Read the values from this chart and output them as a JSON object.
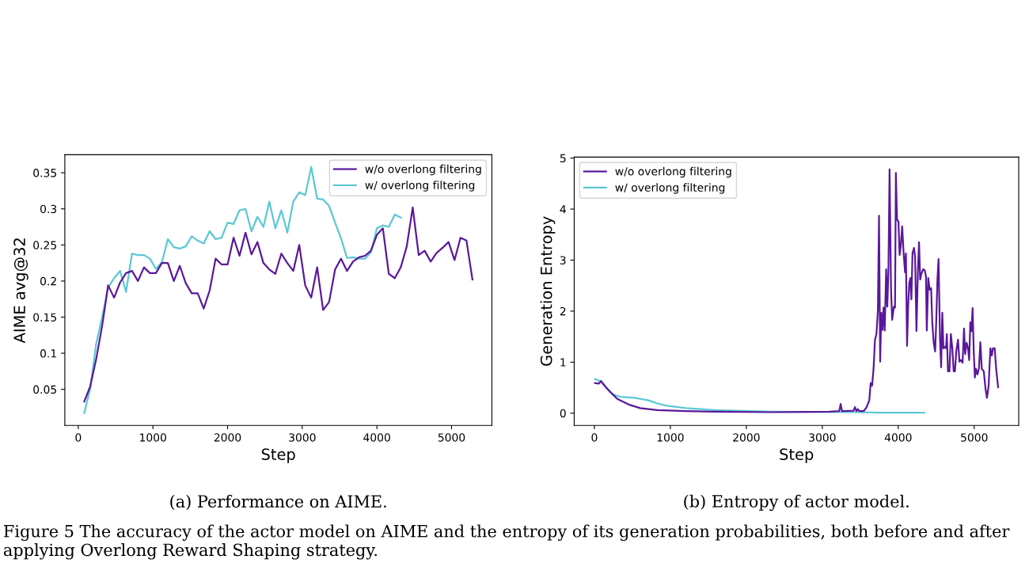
{
  "chart_data": [
    {
      "type": "line",
      "title": "(a) Performance on AIME.",
      "xlabel": "Step",
      "ylabel": "AIME avg@32",
      "xlim": [
        -180,
        5540
      ],
      "ylim": [
        0.0,
        0.375
      ],
      "xticks": [
        0,
        1000,
        2000,
        3000,
        4000,
        5000
      ],
      "yticks": [
        0.05,
        0.1,
        0.15,
        0.2,
        0.25,
        0.3,
        0.35
      ],
      "grid": false,
      "legend": "top right",
      "marker": "none",
      "line_style": "solid",
      "annotations": [
        "Figure 5 The accuracy of the actor model on AIME and the entropy of its generation probabilities, both before and after applying Overlong Reward Shaping strategy."
      ],
      "series": [
        {
          "name": "w/o overlong filtering",
          "color": "#5a189a",
          "x": [
            80,
            160,
            240,
            320,
            400,
            480,
            560,
            640,
            720,
            800,
            880,
            960,
            1040,
            1120,
            1200,
            1280,
            1360,
            1440,
            1520,
            1600,
            1680,
            1760,
            1840,
            1920,
            2000,
            2080,
            2160,
            2240,
            2320,
            2400,
            2480,
            2560,
            2640,
            2720,
            2800,
            2880,
            2960,
            3040,
            3120,
            3200,
            3280,
            3360,
            3440,
            3520,
            3600,
            3680,
            3760,
            3840,
            3920,
            4000,
            4080,
            4160,
            4240,
            4320,
            4400,
            4480,
            4560,
            4640,
            4720,
            4800,
            4880,
            4960,
            5040,
            5120,
            5200,
            5280
          ],
          "values": [
            0.033,
            0.054,
            0.092,
            0.138,
            0.194,
            0.177,
            0.198,
            0.211,
            0.214,
            0.2,
            0.219,
            0.211,
            0.211,
            0.225,
            0.225,
            0.2,
            0.221,
            0.197,
            0.183,
            0.183,
            0.162,
            0.187,
            0.231,
            0.223,
            0.223,
            0.26,
            0.235,
            0.267,
            0.237,
            0.254,
            0.225,
            0.216,
            0.21,
            0.238,
            0.225,
            0.214,
            0.25,
            0.194,
            0.177,
            0.219,
            0.16,
            0.171,
            0.216,
            0.231,
            0.214,
            0.227,
            0.233,
            0.235,
            0.242,
            0.264,
            0.273,
            0.21,
            0.204,
            0.219,
            0.248,
            0.302,
            0.236,
            0.242,
            0.227,
            0.239,
            0.246,
            0.254,
            0.229,
            0.26,
            0.256,
            0.202
          ]
        },
        {
          "name": "w/ overlong filtering",
          "color": "#5bc8d4",
          "x": [
            80,
            160,
            240,
            320,
            400,
            480,
            560,
            640,
            720,
            800,
            880,
            960,
            1040,
            1120,
            1200,
            1280,
            1360,
            1440,
            1520,
            1600,
            1680,
            1760,
            1840,
            1920,
            2000,
            2080,
            2160,
            2240,
            2320,
            2400,
            2480,
            2560,
            2640,
            2720,
            2800,
            2880,
            2960,
            3040,
            3120,
            3200,
            3280,
            3360,
            3440,
            3520,
            3600,
            3680,
            3760,
            3840,
            3920,
            4000,
            4080,
            4160,
            4240,
            4320
          ],
          "values": [
            0.017,
            0.051,
            0.113,
            0.15,
            0.191,
            0.204,
            0.214,
            0.185,
            0.238,
            0.236,
            0.236,
            0.231,
            0.217,
            0.226,
            0.258,
            0.247,
            0.245,
            0.248,
            0.262,
            0.256,
            0.252,
            0.269,
            0.258,
            0.26,
            0.281,
            0.279,
            0.298,
            0.3,
            0.269,
            0.289,
            0.275,
            0.31,
            0.273,
            0.298,
            0.267,
            0.31,
            0.323,
            0.319,
            0.358,
            0.314,
            0.313,
            0.304,
            0.281,
            0.259,
            0.232,
            0.233,
            0.231,
            0.231,
            0.24,
            0.273,
            0.277,
            0.275,
            0.292,
            0.288
          ]
        }
      ]
    },
    {
      "type": "line",
      "title": "(b) Entropy of actor model.",
      "xlabel": "Step",
      "ylabel": "Generation Entropy",
      "xlim": [
        -266,
        5586
      ],
      "ylim": [
        -0.24,
        5.02
      ],
      "xticks": [
        0,
        1000,
        2000,
        3000,
        4000,
        5000
      ],
      "yticks": [
        0,
        1,
        2,
        3,
        4,
        5
      ],
      "grid": false,
      "legend": "top left",
      "marker": "none",
      "line_style": "solid",
      "series": [
        {
          "name": "w/o overlong filtering",
          "color": "#5a189a",
          "x": [
            8,
            57,
            87,
            151,
            226,
            302,
            452,
            603,
            829,
            1206,
            1583,
            2337,
            3091,
            3223,
            3242,
            3260,
            3411,
            3430,
            3449,
            3468,
            3487,
            3543,
            3581,
            3619,
            3637,
            3656,
            3675,
            3694,
            3713,
            3732,
            3747,
            3762,
            3777,
            3792,
            3807,
            3822,
            3841,
            3856,
            3871,
            3886,
            3905,
            3920,
            3943,
            3958,
            3969,
            3984,
            4003,
            4018,
            4033,
            4052,
            4071,
            4090,
            4101,
            4116,
            4131,
            4146,
            4161,
            4173,
            4188,
            4207,
            4222,
            4240,
            4259,
            4274,
            4289,
            4305,
            4327,
            4350,
            4365,
            4376,
            4395,
            4414,
            4433,
            4448,
            4467,
            4486,
            4500,
            4516,
            4531,
            4550,
            4565,
            4580,
            4595,
            4614,
            4629,
            4640,
            4655,
            4674,
            4693,
            4712,
            4730,
            4746,
            4764,
            4787,
            4806,
            4825,
            4847,
            4866,
            4881,
            4900,
            4919,
            4934,
            4949,
            4964,
            4979,
            4994,
            5009,
            5024,
            5043,
            5062,
            5081,
            5100,
            5126,
            5149,
            5168,
            5190,
            5213,
            5232,
            5247,
            5270,
            5289,
            5315
          ],
          "values": [
            0.59,
            0.58,
            0.63,
            0.51,
            0.39,
            0.28,
            0.17,
            0.1,
            0.06,
            0.04,
            0.03,
            0.02,
            0.03,
            0.04,
            0.18,
            0.04,
            0.05,
            0.12,
            0.04,
            0.08,
            0.04,
            0.04,
            0.11,
            0.25,
            0.59,
            0.54,
            0.87,
            1.44,
            1.55,
            2.0,
            3.87,
            1.01,
            1.97,
            1.63,
            2.07,
            1.62,
            2.82,
            2.09,
            2.79,
            4.78,
            2.45,
            1.83,
            2.09,
            2.07,
            4.71,
            3.8,
            3.75,
            3.1,
            3.27,
            3.66,
            3.13,
            2.76,
            3.13,
            1.32,
            2.11,
            2.56,
            2.65,
            2.23,
            3.13,
            3.24,
            3.07,
            1.61,
            2.79,
            3.35,
            2.62,
            2.73,
            2.82,
            2.8,
            2.68,
            1.62,
            2.65,
            2.42,
            2.45,
            1.78,
            1.38,
            1.21,
            1.78,
            2.62,
            3.02,
            1.44,
            0.9,
            1.97,
            1.27,
            1.3,
            1.27,
            1.55,
            0.82,
            0.82,
            1.55,
            1.27,
            0.82,
            0.82,
            1.21,
            1.44,
            1.01,
            1.04,
            0.99,
            1.66,
            1.16,
            1.38,
            1.27,
            1.04,
            1.78,
            1.61,
            2.06,
            1.21,
            0.7,
            0.87,
            0.76,
            0.87,
            1.39,
            0.87,
            0.82,
            0.48,
            0.3,
            0.54,
            1.27,
            1.13,
            1.27,
            1.27,
            0.87,
            0.51
          ]
        },
        {
          "name": "w/ overlong filtering",
          "color": "#5bc8d4",
          "x": [
            8,
            75,
            151,
            245,
            339,
            528,
            716,
            829,
            942,
            1206,
            1583,
            2337,
            3468,
            3769,
            4342
          ],
          "values": [
            0.67,
            0.63,
            0.51,
            0.37,
            0.32,
            0.3,
            0.25,
            0.19,
            0.15,
            0.1,
            0.06,
            0.03,
            0.02,
            0.01,
            0.01
          ]
        }
      ]
    }
  ]
}
